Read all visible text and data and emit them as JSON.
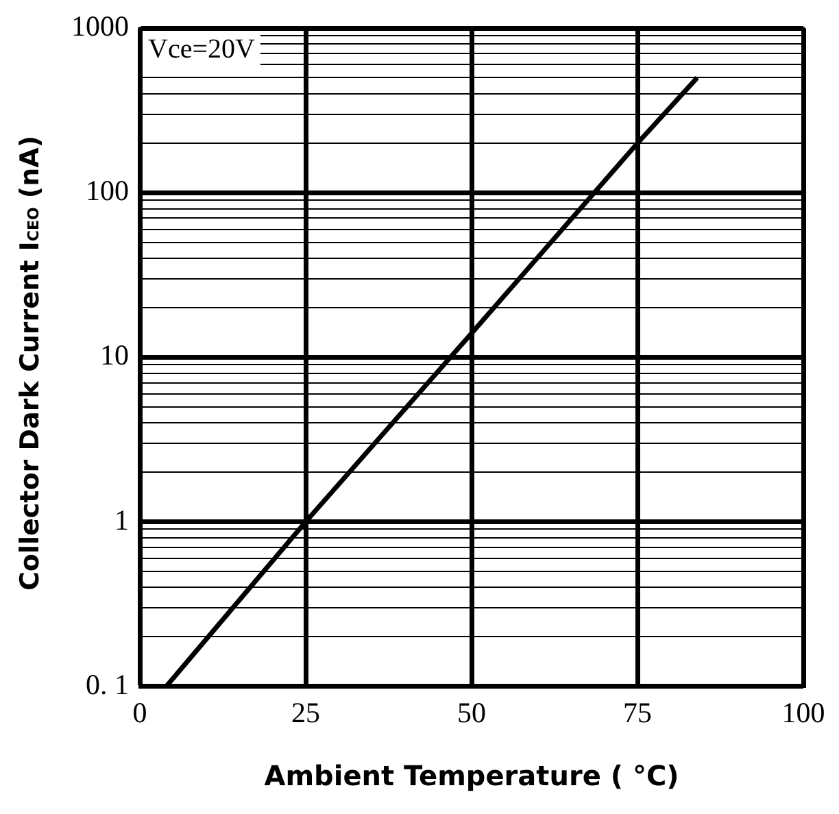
{
  "chart_data": {
    "type": "line",
    "xlabel": "Ambient Temperature ( °C)",
    "ylabel": "Collector Dark Current I$_{CEO}$ (nA)",
    "x": [
      4,
      25,
      50,
      75,
      84
    ],
    "series": [
      {
        "color": "#000000",
        "values": [
          0.1,
          1,
          14,
          200,
          500
        ]
      }
    ],
    "xlim": [
      0,
      100
    ],
    "xticks": [
      0,
      25,
      50,
      75,
      100
    ],
    "ylim": [
      0.1,
      1000
    ],
    "log": true,
    "yticks": [
      {
        "value": 0.1,
        "label": "0. 1"
      },
      {
        "value": 0.2,
        "label": null
      },
      {
        "value": 0.3,
        "label": null
      },
      {
        "value": 0.4,
        "label": null
      },
      {
        "value": 0.5,
        "label": null
      },
      {
        "value": 0.6,
        "label": null
      },
      {
        "value": 0.7,
        "label": null
      },
      {
        "value": 0.8,
        "label": null
      },
      {
        "value": 0.9,
        "label": null
      },
      1,
      {
        "value": 2,
        "label": null
      },
      {
        "value": 3,
        "label": null
      },
      {
        "value": 4,
        "label": null
      },
      {
        "value": 5,
        "label": null
      },
      {
        "value": 6,
        "label": null
      },
      {
        "value": 7,
        "label": null
      },
      {
        "value": 8,
        "label": null
      },
      {
        "value": 9,
        "label": null
      },
      10,
      {
        "value": 20,
        "label": null
      },
      {
        "value": 30,
        "label": null
      },
      {
        "value": 40,
        "label": null
      },
      {
        "value": 50,
        "label": null
      },
      {
        "value": 60,
        "label": null
      },
      {
        "value": 70,
        "label": null
      },
      {
        "value": 80,
        "label": null
      },
      {
        "value": 90,
        "label": null
      },
      100,
      {
        "value": 200,
        "label": null
      },
      {
        "value": 300,
        "label": null
      },
      {
        "value": 400,
        "label": null
      },
      {
        "value": 500,
        "label": null
      },
      {
        "value": 600,
        "label": null
      },
      {
        "value": 700,
        "label": null
      },
      {
        "value": 800,
        "label": null
      },
      {
        "value": 900,
        "label": null
      },
      1000
    ],
    "grid": true,
    "legend": false,
    "marker": "none",
    "line_style": "solid",
    "annotations": [
      "Vce=20V"
    ]
  }
}
